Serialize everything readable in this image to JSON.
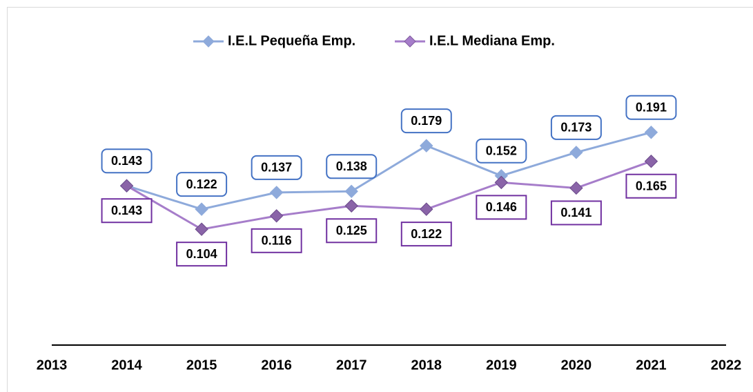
{
  "chart_data": {
    "type": "line",
    "x": [
      2014,
      2015,
      2016,
      2017,
      2018,
      2019,
      2020,
      2021
    ],
    "xlim": [
      2013,
      2022
    ],
    "xticks": [
      2013,
      2014,
      2015,
      2016,
      2017,
      2018,
      2019,
      2020,
      2021,
      2022
    ],
    "ylim": [
      0,
      0.29
    ],
    "legend": "top",
    "series": [
      {
        "name": "I.E.L Pequeña Emp.",
        "color": "#8eaadb",
        "label_color": "#4472c4",
        "values": [
          0.143,
          0.122,
          0.137,
          0.138,
          0.179,
          0.152,
          0.173,
          0.191
        ]
      },
      {
        "name": "I.E.L Mediana Emp.",
        "color": "#a67dca",
        "label_color": "#7030a0",
        "values": [
          0.143,
          0.104,
          0.116,
          0.125,
          0.122,
          0.146,
          0.141,
          0.165
        ]
      }
    ]
  }
}
